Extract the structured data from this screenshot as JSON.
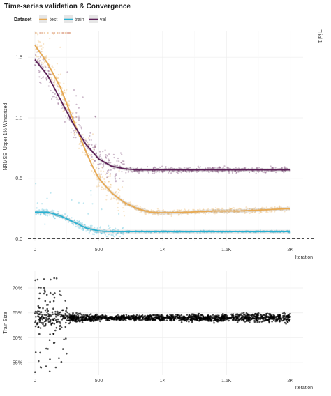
{
  "chart_data": [
    {
      "type": "scatter",
      "title": "Time-series validation & Convergence",
      "xlabel": "Iteration",
      "ylabel": "NRMSE [Upper 1% Winsorized]",
      "facet_label": "Trial 1",
      "legend": {
        "title": "Dataset",
        "placement": "top-left",
        "entries": [
          "test",
          "train",
          "val"
        ]
      },
      "xlim": [
        0,
        2100
      ],
      "ylim": [
        -0.02,
        1.72
      ],
      "x_ticks": [
        0,
        500,
        1000,
        1500,
        2000
      ],
      "x_tick_labels": [
        "0",
        "500",
        "1K",
        "1.5K",
        "2K"
      ],
      "y_ticks": [
        0.0,
        0.5,
        1.0,
        1.5
      ],
      "y_tick_labels": [
        "0.0",
        "0.5",
        "1.0",
        "1.5"
      ],
      "grid": true,
      "reference_line": {
        "y": 0,
        "style": "dashed"
      },
      "series": [
        {
          "name": "test",
          "color": "#e8a951",
          "smooth_x": [
            0,
            100,
            200,
            300,
            350,
            400,
            450,
            500,
            600,
            700,
            800,
            900,
            1000,
            1200,
            1400,
            1600,
            1800,
            2000
          ],
          "smooth_y": [
            1.6,
            1.45,
            1.25,
            0.98,
            0.85,
            0.72,
            0.6,
            0.5,
            0.38,
            0.3,
            0.25,
            0.22,
            0.215,
            0.22,
            0.23,
            0.23,
            0.24,
            0.25
          ],
          "points_y_range_early": [
            1.3,
            1.7
          ],
          "points_y_range_late": [
            0.15,
            0.32
          ]
        },
        {
          "name": "train",
          "color": "#29b1d2",
          "smooth_x": [
            0,
            100,
            200,
            300,
            400,
            500,
            600,
            800,
            1000,
            1500,
            2000
          ],
          "smooth_y": [
            0.22,
            0.22,
            0.19,
            0.14,
            0.09,
            0.065,
            0.06,
            0.06,
            0.06,
            0.06,
            0.06
          ],
          "points_y_range_early": [
            0.12,
            0.28
          ],
          "points_y_range_late": [
            0.05,
            0.08
          ]
        },
        {
          "name": "val",
          "color": "#5c1f57",
          "smooth_x": [
            0,
            100,
            200,
            300,
            400,
            500,
            600,
            700,
            800,
            1000,
            1200,
            1500,
            2000
          ],
          "smooth_y": [
            1.48,
            1.35,
            1.15,
            0.95,
            0.78,
            0.66,
            0.6,
            0.58,
            0.57,
            0.57,
            0.57,
            0.57,
            0.57
          ],
          "points_y_range_early": [
            0.9,
            1.3
          ],
          "points_y_range_late": [
            0.54,
            0.6
          ]
        }
      ]
    },
    {
      "type": "scatter",
      "title": "",
      "xlabel": "Iteration",
      "ylabel": "Train Size",
      "xlim": [
        0,
        2100
      ],
      "ylim": [
        0.525,
        0.735
      ],
      "x_ticks": [
        0,
        500,
        1000,
        1500,
        2000
      ],
      "x_tick_labels": [
        "0",
        "500",
        "1K",
        "1.5K",
        "2K"
      ],
      "y_ticks": [
        0.55,
        0.6,
        0.65,
        0.7
      ],
      "y_tick_labels": [
        "55%",
        "60%",
        "65%",
        "70%"
      ],
      "grid": true,
      "series": [
        {
          "color": "#000000",
          "typical_value": 0.64,
          "early_spread": [
            0.53,
            0.73
          ],
          "late_spread": [
            0.625,
            0.655
          ]
        }
      ]
    }
  ]
}
